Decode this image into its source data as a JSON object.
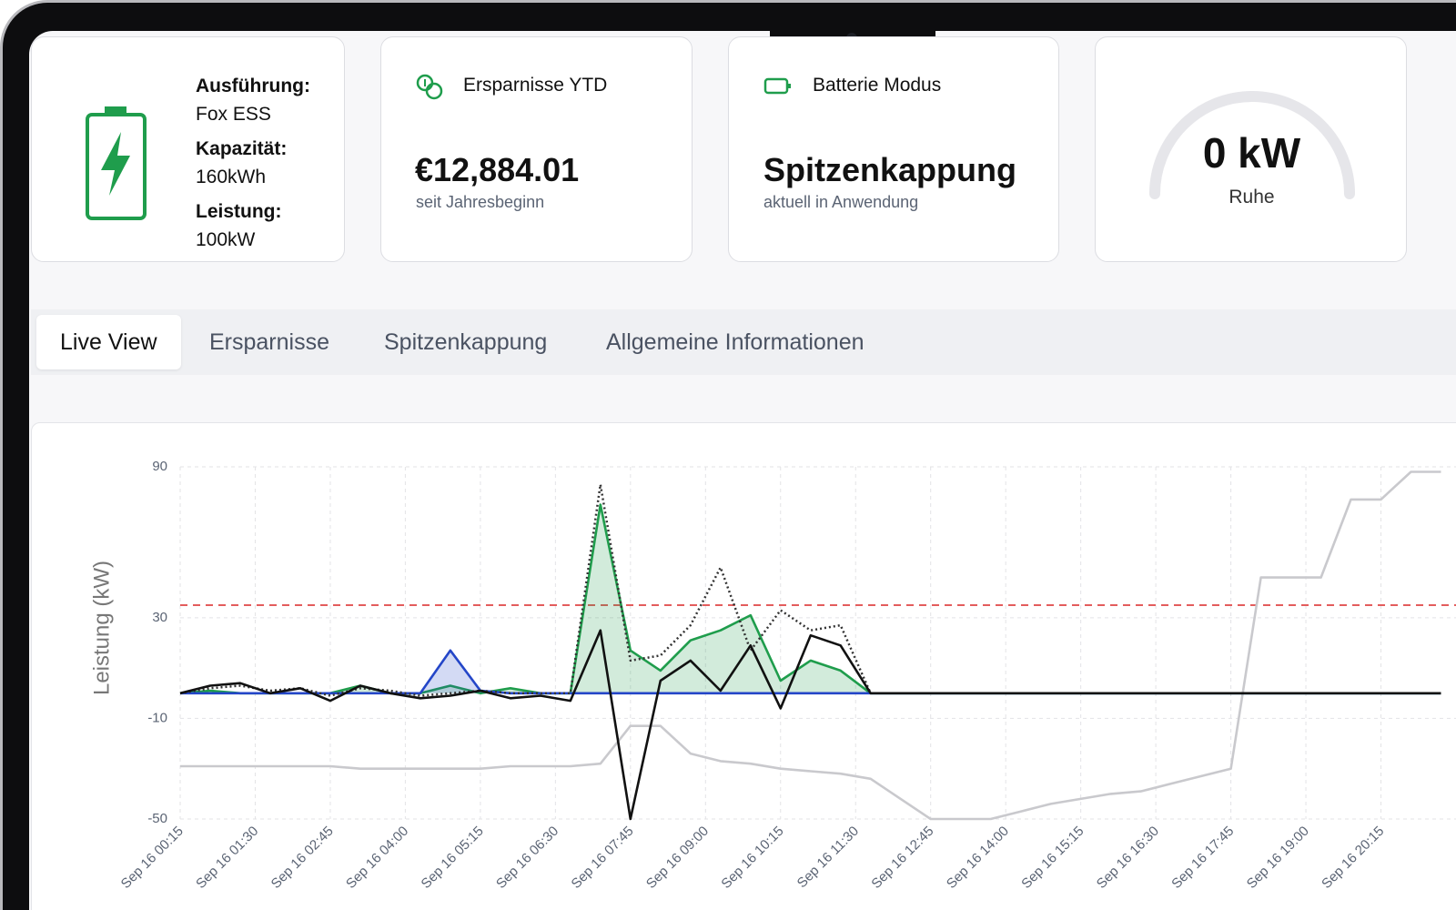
{
  "cards": [
    {
      "rows": [
        "Ausführung:",
        "Fox ESS",
        "Kapazität:",
        "160kWh",
        "Leistung:",
        "100kW"
      ]
    },
    {
      "title": "Ersparnisse YTD",
      "value": "€12,884.01",
      "caption": "seit Jahresbeginn"
    },
    {
      "title": "Batterie Modus",
      "value": "Spitzenkappung",
      "caption": "aktuell in Anwendung"
    },
    {
      "value": "0 kW",
      "caption": "Ruhe"
    }
  ],
  "tabs": {
    "items": [
      "Live View",
      "Ersparnisse",
      "Spitzenkappung",
      "Allgemeine Informationen"
    ],
    "active": 0
  },
  "chart_data": {
    "type": "line",
    "y_label": "Leistung (kW)",
    "x": [
      15,
      45,
      75,
      105,
      135,
      165,
      195,
      225,
      255,
      285,
      315,
      345,
      375,
      405,
      435,
      465,
      495,
      525,
      555,
      585,
      615,
      645,
      675,
      705,
      735,
      765,
      795,
      825,
      855,
      885,
      915,
      945,
      975,
      1005,
      1035,
      1065,
      1095,
      1125,
      1155,
      1185,
      1215,
      1245,
      1275
    ],
    "xlim": [
      15,
      1290
    ],
    "xticks": [
      {
        "value": 15,
        "label": "Sep 16 00:15"
      },
      {
        "value": 90,
        "label": "Sep 16 01:30"
      },
      {
        "value": 165,
        "label": "Sep 16 02:45"
      },
      {
        "value": 240,
        "label": "Sep 16 04:00"
      },
      {
        "value": 315,
        "label": "Sep 16 05:15"
      },
      {
        "value": 390,
        "label": "Sep 16 06:30"
      },
      {
        "value": 465,
        "label": "Sep 16 07:45"
      },
      {
        "value": 540,
        "label": "Sep 16 09:00"
      },
      {
        "value": 615,
        "label": "Sep 16 10:15"
      },
      {
        "value": 690,
        "label": "Sep 16 11:30"
      },
      {
        "value": 765,
        "label": "Sep 16 12:45"
      },
      {
        "value": 840,
        "label": "Sep 16 14:00"
      },
      {
        "value": 915,
        "label": "Sep 16 15:15"
      },
      {
        "value": 990,
        "label": "Sep 16 16:30"
      },
      {
        "value": 1065,
        "label": "Sep 16 17:45"
      },
      {
        "value": 1140,
        "label": "Sep 16 19:00"
      },
      {
        "value": 1215,
        "label": "Sep 16 20:15"
      }
    ],
    "ylim": [
      -50,
      90
    ],
    "yticks": [
      -50,
      -10,
      30,
      90
    ],
    "grid": true,
    "reference_line": {
      "value": 35,
      "color": "#e35d5d"
    },
    "series": [
      {
        "color": "#c9c9cd",
        "values": [
          -29,
          -29,
          -29,
          -29,
          -29,
          -29,
          -30,
          -30,
          -30,
          -30,
          -30,
          -29,
          -29,
          -29,
          -28,
          -13,
          -13,
          -24,
          -27,
          -28,
          -30,
          -31,
          -32,
          -34,
          -42,
          -50,
          -50,
          -50,
          -47,
          -44,
          -42,
          -40,
          -39,
          -36,
          -33,
          -30,
          46,
          46,
          46,
          77,
          77,
          88,
          88
        ]
      },
      {
        "color": "#1f9d4c",
        "fill": true,
        "values": [
          0,
          1,
          0,
          0,
          0,
          0,
          3,
          0,
          0,
          3,
          0,
          2,
          0,
          0,
          75,
          17,
          9,
          21,
          25,
          31,
          5,
          13,
          9,
          0,
          0,
          0,
          0,
          0,
          0,
          0,
          0,
          0,
          0,
          0,
          0,
          0,
          0,
          0,
          0,
          0,
          0,
          0,
          0
        ]
      },
      {
        "color": "#2446c8",
        "fill": true,
        "values": [
          0,
          0,
          0,
          0,
          0,
          0,
          0,
          0,
          0,
          17,
          1,
          0,
          0,
          0,
          0,
          0,
          0,
          0,
          0,
          0,
          0,
          0,
          0,
          0,
          0,
          0,
          0,
          0,
          0,
          0,
          0,
          0,
          0,
          0,
          0,
          0,
          0,
          0,
          0,
          0,
          0,
          0,
          0
        ]
      },
      {
        "color": "#333333",
        "dash": "dotted",
        "values": [
          0,
          2,
          3,
          1,
          2,
          -1,
          2,
          1,
          -1,
          0,
          1,
          0,
          0,
          0,
          83,
          13,
          15,
          27,
          50,
          17,
          33,
          25,
          27,
          0,
          0,
          0,
          0,
          0,
          0,
          0,
          0,
          0,
          0,
          0,
          0,
          0,
          0,
          0,
          0,
          0,
          0,
          0,
          0
        ]
      },
      {
        "color": "#111111",
        "values": [
          0,
          3,
          4,
          0,
          2,
          -3,
          3,
          0,
          -2,
          -1,
          1,
          -2,
          -1,
          -3,
          25,
          -50,
          5,
          13,
          1,
          19,
          -6,
          23,
          19,
          0,
          0,
          0,
          0,
          0,
          0,
          0,
          0,
          0,
          0,
          0,
          0,
          0,
          0,
          0,
          0,
          0,
          0,
          0,
          0
        ]
      }
    ]
  }
}
